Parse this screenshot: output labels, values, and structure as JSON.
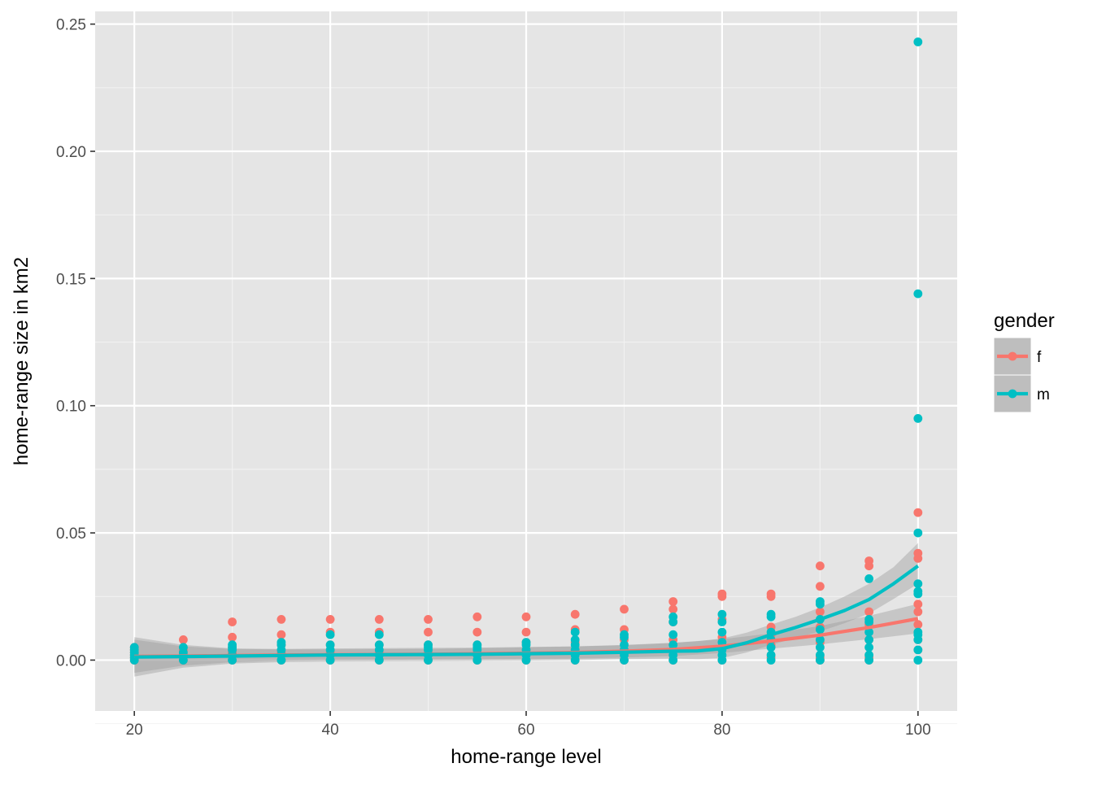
{
  "chart_data": {
    "type": "scatter",
    "title": "",
    "xlabel": "home-range level",
    "ylabel": "home-range size in km2",
    "xlim": [
      16,
      104
    ],
    "ylim": [
      -0.02,
      0.255
    ],
    "x_ticks": [
      20,
      40,
      60,
      80,
      100
    ],
    "x_tick_labels": [
      "20",
      "40",
      "60",
      "80",
      "100"
    ],
    "y_ticks": [
      0,
      0.05,
      0.1,
      0.15,
      0.2,
      0.25
    ],
    "y_tick_labels": [
      "0.00",
      "0.05",
      "0.10",
      "0.15",
      "0.20",
      "0.25"
    ],
    "grid": true,
    "legend": {
      "title": "gender",
      "position": "right",
      "entries": [
        "f",
        "m"
      ]
    },
    "colors": {
      "f": "#F8766D",
      "m": "#00BFC4",
      "panel": "#E5E5E5",
      "ribbon": "#999999"
    },
    "series": [
      {
        "name": "f",
        "points": [
          [
            20,
            0.0
          ],
          [
            20,
            0.001
          ],
          [
            20,
            0.002
          ],
          [
            20,
            0.003
          ],
          [
            20,
            0.004
          ],
          [
            20,
            0.005
          ],
          [
            25,
            0.0
          ],
          [
            25,
            0.002
          ],
          [
            25,
            0.004
          ],
          [
            25,
            0.008
          ],
          [
            30,
            0.0
          ],
          [
            30,
            0.003
          ],
          [
            30,
            0.005
          ],
          [
            30,
            0.009
          ],
          [
            30,
            0.015
          ],
          [
            35,
            0.0
          ],
          [
            35,
            0.003
          ],
          [
            35,
            0.006
          ],
          [
            35,
            0.01
          ],
          [
            35,
            0.016
          ],
          [
            40,
            0.0
          ],
          [
            40,
            0.003
          ],
          [
            40,
            0.006
          ],
          [
            40,
            0.011
          ],
          [
            40,
            0.016
          ],
          [
            45,
            0.0
          ],
          [
            45,
            0.003
          ],
          [
            45,
            0.006
          ],
          [
            45,
            0.011
          ],
          [
            45,
            0.016
          ],
          [
            50,
            0.0
          ],
          [
            50,
            0.003
          ],
          [
            50,
            0.006
          ],
          [
            50,
            0.011
          ],
          [
            50,
            0.016
          ],
          [
            55,
            0.0
          ],
          [
            55,
            0.003
          ],
          [
            55,
            0.006
          ],
          [
            55,
            0.011
          ],
          [
            55,
            0.017
          ],
          [
            60,
            0.0
          ],
          [
            60,
            0.004
          ],
          [
            60,
            0.007
          ],
          [
            60,
            0.011
          ],
          [
            60,
            0.017
          ],
          [
            65,
            0.0
          ],
          [
            65,
            0.004
          ],
          [
            65,
            0.007
          ],
          [
            65,
            0.012
          ],
          [
            65,
            0.018
          ],
          [
            70,
            0.0
          ],
          [
            70,
            0.004
          ],
          [
            70,
            0.008
          ],
          [
            70,
            0.012
          ],
          [
            70,
            0.02
          ],
          [
            75,
            0.0
          ],
          [
            75,
            0.004
          ],
          [
            75,
            0.008
          ],
          [
            75,
            0.015
          ],
          [
            75,
            0.02
          ],
          [
            75,
            0.023
          ],
          [
            80,
            0.0
          ],
          [
            80,
            0.005
          ],
          [
            80,
            0.009
          ],
          [
            80,
            0.016
          ],
          [
            80,
            0.025
          ],
          [
            80,
            0.026
          ],
          [
            85,
            0.001
          ],
          [
            85,
            0.006
          ],
          [
            85,
            0.01
          ],
          [
            85,
            0.013
          ],
          [
            85,
            0.025
          ],
          [
            85,
            0.026
          ],
          [
            90,
            0.0
          ],
          [
            90,
            0.001
          ],
          [
            90,
            0.007
          ],
          [
            90,
            0.013
          ],
          [
            90,
            0.019
          ],
          [
            90,
            0.029
          ],
          [
            90,
            0.037
          ],
          [
            95,
            0.0
          ],
          [
            95,
            0.001
          ],
          [
            95,
            0.008
          ],
          [
            95,
            0.014
          ],
          [
            95,
            0.019
          ],
          [
            95,
            0.037
          ],
          [
            95,
            0.039
          ],
          [
            100,
            0.004
          ],
          [
            100,
            0.008
          ],
          [
            100,
            0.014
          ],
          [
            100,
            0.019
          ],
          [
            100,
            0.022
          ],
          [
            100,
            0.04
          ],
          [
            100,
            0.042
          ],
          [
            100,
            0.058
          ]
        ],
        "smooth": {
          "x": [
            20,
            25,
            30,
            35,
            40,
            45,
            50,
            55,
            60,
            65,
            70,
            75,
            80,
            85,
            90,
            95,
            100
          ],
          "y": [
            0.0015,
            0.0016,
            0.0018,
            0.002,
            0.0021,
            0.0022,
            0.0023,
            0.0025,
            0.0027,
            0.003,
            0.0035,
            0.0042,
            0.0055,
            0.0075,
            0.0098,
            0.0128,
            0.0163
          ],
          "lower": [
            -0.005,
            -0.0022,
            -0.0008,
            -0.0002,
            0.0,
            0.0001,
            0.0002,
            0.0003,
            0.0004,
            0.0006,
            0.001,
            0.0016,
            0.0028,
            0.0045,
            0.0062,
            0.0082,
            0.0105
          ],
          "upper": [
            0.008,
            0.0054,
            0.0044,
            0.0042,
            0.0042,
            0.0043,
            0.0044,
            0.0047,
            0.005,
            0.0054,
            0.006,
            0.0068,
            0.0082,
            0.0105,
            0.0134,
            0.0174,
            0.0221
          ]
        }
      },
      {
        "name": "m",
        "points": [
          [
            20,
            0.0
          ],
          [
            20,
            0.001
          ],
          [
            20,
            0.002
          ],
          [
            20,
            0.003
          ],
          [
            20,
            0.004
          ],
          [
            20,
            0.005
          ],
          [
            25,
            0.0
          ],
          [
            25,
            0.002
          ],
          [
            25,
            0.003
          ],
          [
            25,
            0.005
          ],
          [
            30,
            0.0
          ],
          [
            30,
            0.002
          ],
          [
            30,
            0.004
          ],
          [
            30,
            0.005
          ],
          [
            30,
            0.006
          ],
          [
            35,
            0.0
          ],
          [
            35,
            0.002
          ],
          [
            35,
            0.004
          ],
          [
            35,
            0.006
          ],
          [
            35,
            0.007
          ],
          [
            40,
            0.0
          ],
          [
            40,
            0.002
          ],
          [
            40,
            0.004
          ],
          [
            40,
            0.006
          ],
          [
            40,
            0.01
          ],
          [
            45,
            0.0
          ],
          [
            45,
            0.002
          ],
          [
            45,
            0.004
          ],
          [
            45,
            0.006
          ],
          [
            45,
            0.01
          ],
          [
            50,
            0.0
          ],
          [
            50,
            0.002
          ],
          [
            50,
            0.004
          ],
          [
            50,
            0.005
          ],
          [
            50,
            0.006
          ],
          [
            55,
            0.0
          ],
          [
            55,
            0.002
          ],
          [
            55,
            0.004
          ],
          [
            55,
            0.005
          ],
          [
            55,
            0.006
          ],
          [
            60,
            0.0
          ],
          [
            60,
            0.002
          ],
          [
            60,
            0.004
          ],
          [
            60,
            0.006
          ],
          [
            60,
            0.007
          ],
          [
            65,
            0.0
          ],
          [
            65,
            0.002
          ],
          [
            65,
            0.004
          ],
          [
            65,
            0.006
          ],
          [
            65,
            0.008
          ],
          [
            65,
            0.011
          ],
          [
            70,
            0.0
          ],
          [
            70,
            0.002
          ],
          [
            70,
            0.004
          ],
          [
            70,
            0.006
          ],
          [
            70,
            0.009
          ],
          [
            70,
            0.01
          ],
          [
            75,
            0.0
          ],
          [
            75,
            0.002
          ],
          [
            75,
            0.004
          ],
          [
            75,
            0.006
          ],
          [
            75,
            0.01
          ],
          [
            75,
            0.015
          ],
          [
            75,
            0.017
          ],
          [
            80,
            0.0
          ],
          [
            80,
            0.002
          ],
          [
            80,
            0.004
          ],
          [
            80,
            0.007
          ],
          [
            80,
            0.011
          ],
          [
            80,
            0.015
          ],
          [
            80,
            0.018
          ],
          [
            85,
            0.0
          ],
          [
            85,
            0.002
          ],
          [
            85,
            0.005
          ],
          [
            85,
            0.008
          ],
          [
            85,
            0.011
          ],
          [
            85,
            0.017
          ],
          [
            85,
            0.018
          ],
          [
            90,
            0.0
          ],
          [
            90,
            0.002
          ],
          [
            90,
            0.005
          ],
          [
            90,
            0.008
          ],
          [
            90,
            0.012
          ],
          [
            90,
            0.016
          ],
          [
            90,
            0.022
          ],
          [
            90,
            0.023
          ],
          [
            95,
            0.0
          ],
          [
            95,
            0.002
          ],
          [
            95,
            0.005
          ],
          [
            95,
            0.008
          ],
          [
            95,
            0.011
          ],
          [
            95,
            0.015
          ],
          [
            95,
            0.016
          ],
          [
            95,
            0.032
          ],
          [
            100,
            0.0
          ],
          [
            100,
            0.004
          ],
          [
            100,
            0.008
          ],
          [
            100,
            0.01
          ],
          [
            100,
            0.011
          ],
          [
            100,
            0.026
          ],
          [
            100,
            0.027
          ],
          [
            100,
            0.03
          ],
          [
            100,
            0.05
          ],
          [
            100,
            0.095
          ],
          [
            100,
            0.144
          ],
          [
            100,
            0.243
          ]
        ],
        "smooth": {
          "x": [
            20,
            25,
            30,
            35,
            40,
            45,
            50,
            55,
            60,
            65,
            70,
            75,
            77.5,
            80,
            82.5,
            85,
            87.5,
            90,
            92.5,
            95,
            97.5,
            100
          ],
          "y": [
            0.0012,
            0.0014,
            0.0016,
            0.0018,
            0.002,
            0.0021,
            0.0022,
            0.0023,
            0.0025,
            0.0027,
            0.0031,
            0.0035,
            0.0036,
            0.0045,
            0.0068,
            0.01,
            0.0128,
            0.016,
            0.0195,
            0.0238,
            0.03,
            0.037
          ],
          "lower": [
            -0.0065,
            -0.003,
            -0.0014,
            -0.0008,
            -0.0006,
            -0.0005,
            -0.0004,
            -0.0003,
            -0.0002,
            0.0,
            0.0004,
            0.0006,
            0.0004,
            0.0008,
            0.003,
            0.006,
            0.0087,
            0.0113,
            0.0145,
            0.0183,
            0.024,
            0.03
          ],
          "upper": [
            0.009,
            0.006,
            0.0046,
            0.0044,
            0.0046,
            0.0047,
            0.0048,
            0.0049,
            0.0052,
            0.0054,
            0.0058,
            0.0068,
            0.0074,
            0.0085,
            0.0108,
            0.014,
            0.017,
            0.0207,
            0.025,
            0.03,
            0.0365,
            0.046
          ]
        }
      }
    ]
  }
}
